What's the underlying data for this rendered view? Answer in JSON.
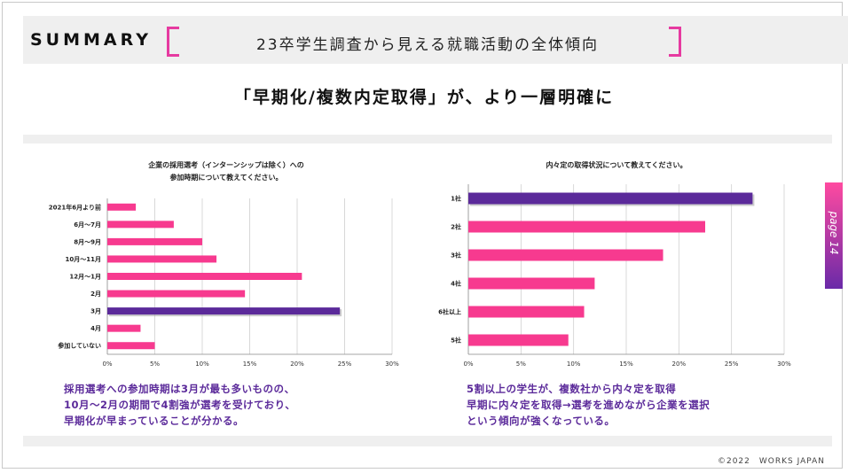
{
  "header": {
    "label": "SUMMARY",
    "title": "23卒学生調査から見える就職活動の全体傾向"
  },
  "headline": "「早期化/複数内定取得」が、より一層明確に",
  "page_tab": "page 14",
  "colors": {
    "pink": "#f73a8f",
    "purple": "#5b2a9a",
    "accent": "#e63aa0"
  },
  "charts": {
    "left": {
      "title_line1": "企業の採用選考（インターンシップは除く）への",
      "title_line2": "参加時期について教えてください。",
      "comment": [
        "採用選考への参加時期は3月が最も多いものの、",
        "10月～2月の期間で4割強が選考を受けており、",
        "早期化が早まっていることが分かる。"
      ]
    },
    "right": {
      "title_line1": "内々定の取得状況について教えてください。",
      "comment": [
        "5割以上の学生が、複数社から内々定を取得",
        "早期に内々定を取得→選考を進めながら企業を選択",
        "という傾向が強くなっている。"
      ]
    }
  },
  "chart_data": [
    {
      "type": "bar",
      "orientation": "horizontal",
      "title": "企業の採用選考（インターンシップは除く）への参加時期について教えてください。",
      "categories": [
        "2021年6月より前",
        "6月～7月",
        "8月～9月",
        "10月～11月",
        "12月～1月",
        "2月",
        "3月",
        "4月",
        "参加していない"
      ],
      "values": [
        3,
        7,
        10,
        11.5,
        20.5,
        14.5,
        24.5,
        3.5,
        5
      ],
      "highlight": "3月",
      "xlim": [
        0,
        30
      ],
      "xticks": [
        "0%",
        "5%",
        "10%",
        "15%",
        "20%",
        "25%",
        "30%"
      ],
      "grid": true
    },
    {
      "type": "bar",
      "orientation": "horizontal",
      "title": "内々定の取得状況について教えてください。",
      "categories": [
        "1社",
        "2社",
        "3社",
        "4社",
        "6社以上",
        "5社"
      ],
      "values": [
        27,
        22.5,
        18.5,
        12,
        11,
        9.5
      ],
      "highlight": "1社",
      "xlim": [
        0,
        30
      ],
      "xticks": [
        "0%",
        "5%",
        "10%",
        "15%",
        "20%",
        "25%",
        "30%"
      ],
      "grid": true
    }
  ],
  "copyright": "©2022　WORKS JAPAN"
}
